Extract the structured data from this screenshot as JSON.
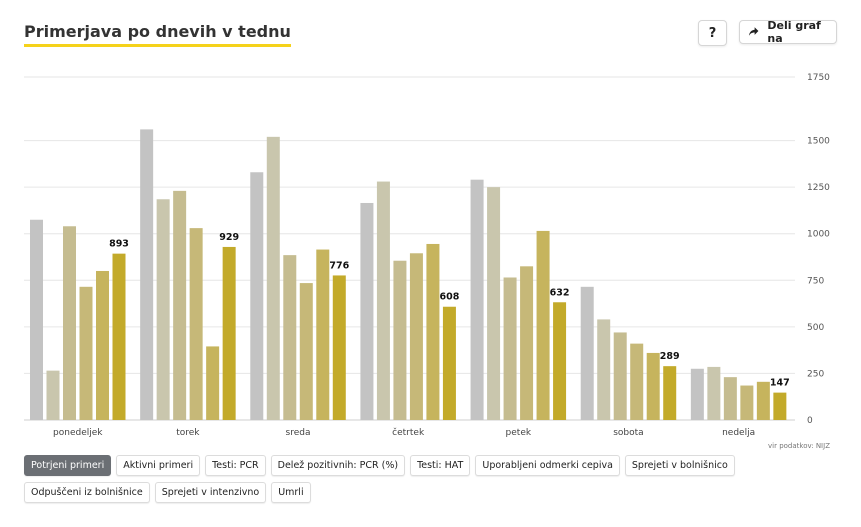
{
  "header": {
    "title": "Primerjava po dnevih v tednu",
    "help_label": "?",
    "share_label": "Deli graf na",
    "share_icon": "share-arrow-icon"
  },
  "source": "vir podatkov: NIJZ",
  "filters": [
    {
      "label": "Potrjeni primeri",
      "active": true
    },
    {
      "label": "Aktivni primeri",
      "active": false
    },
    {
      "label": "Testi: PCR",
      "active": false
    },
    {
      "label": "Delež pozitivnih: PCR (%)",
      "active": false
    },
    {
      "label": "Testi: HAT",
      "active": false
    },
    {
      "label": "Uporabljeni odmerki cepiva",
      "active": false
    },
    {
      "label": "Sprejeti v bolnišnico",
      "active": false
    },
    {
      "label": "Odpuščeni iz bolnišnice",
      "active": false
    },
    {
      "label": "Sprejeti v intenzivno",
      "active": false
    },
    {
      "label": "Umrli",
      "active": false
    }
  ],
  "chart_data": {
    "type": "bar",
    "title": "Primerjava po dnevih v tednu",
    "categories": [
      "ponedeljek",
      "torek",
      "sreda",
      "četrtek",
      "petek",
      "sobota",
      "nedelja"
    ],
    "series": [
      {
        "color": "#c3c3c3",
        "values": [
          1075,
          1560,
          1330,
          1165,
          1290,
          715,
          275
        ]
      },
      {
        "color": "#c9c6ad",
        "values": [
          265,
          1185,
          1520,
          1280,
          1250,
          540,
          285
        ]
      },
      {
        "color": "#c5bc90",
        "values": [
          1040,
          1230,
          885,
          855,
          765,
          470,
          230
        ]
      },
      {
        "color": "#c6b878",
        "values": [
          715,
          1030,
          735,
          895,
          825,
          410,
          185
        ]
      },
      {
        "color": "#c6b45d",
        "values": [
          800,
          395,
          915,
          945,
          1015,
          360,
          205
        ]
      },
      {
        "color": "#c3aa2a",
        "values": [
          893,
          929,
          776,
          608,
          632,
          289,
          147
        ]
      }
    ],
    "value_labels": [
      "893",
      "929",
      "776",
      "608",
      "632",
      "289",
      "147"
    ],
    "y_ticks": [
      "0",
      "250",
      "500",
      "750",
      "1000",
      "1250",
      "1500",
      "1750"
    ],
    "ylim": [
      0,
      1750
    ],
    "grid": true,
    "y_axis_position": "right"
  }
}
